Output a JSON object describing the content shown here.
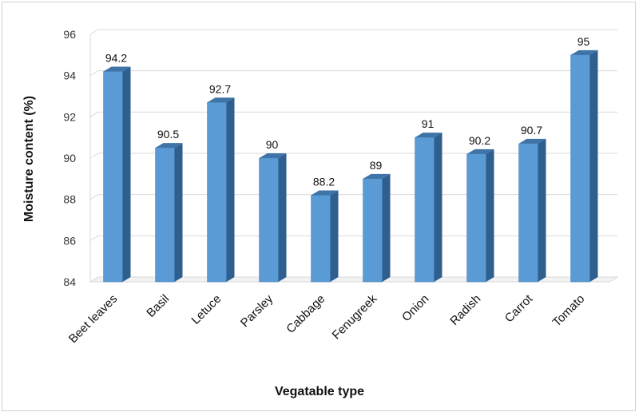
{
  "chart_data": {
    "type": "bar",
    "title": "",
    "xlabel": "Vegatable type",
    "ylabel": "Moisture content (%)",
    "categories": [
      "Beet leaves",
      "Basil",
      "Letuce",
      "Parsley",
      "Cabbage",
      "Fenugreek",
      "Onion",
      "Radish",
      "Carrot",
      "Tomato"
    ],
    "values": [
      94.2,
      90.5,
      92.7,
      90,
      88.2,
      89,
      91,
      90.2,
      90.7,
      95
    ],
    "value_labels": [
      "94.2",
      "90.5",
      "92.7",
      "90",
      "88.2",
      "89",
      "91",
      "90.2",
      "90.7",
      "95"
    ],
    "ylim": [
      84,
      96
    ],
    "yticks": [
      "84",
      "86",
      "88",
      "90",
      "92",
      "94",
      "96"
    ],
    "grid": true,
    "legend": "none",
    "bar_color": "#5b9bd5",
    "bar_side_color": "#2e5f8f",
    "bar_top_color": "#3f74a8"
  }
}
